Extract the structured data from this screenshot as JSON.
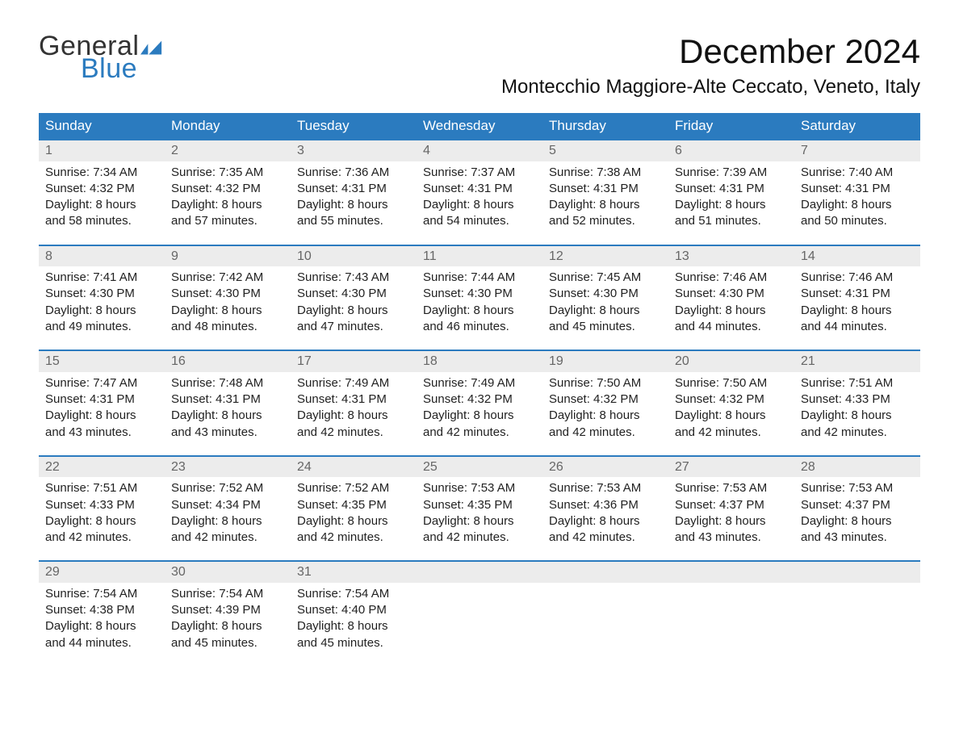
{
  "logo": {
    "text1": "General",
    "text2": "Blue",
    "accent_color": "#2b7bbf"
  },
  "title": "December 2024",
  "location": "Montecchio Maggiore-Alte Ceccato, Veneto, Italy",
  "colors": {
    "header_bg": "#2b7bbf",
    "header_text": "#ffffff",
    "row_separator": "#2b7bbf",
    "daynum_bg": "#ececec",
    "daynum_text": "#666666",
    "body_text": "#222222",
    "page_bg": "#ffffff"
  },
  "day_headers": [
    "Sunday",
    "Monday",
    "Tuesday",
    "Wednesday",
    "Thursday",
    "Friday",
    "Saturday"
  ],
  "weeks": [
    [
      {
        "n": "1",
        "sunrise": "Sunrise: 7:34 AM",
        "sunset": "Sunset: 4:32 PM",
        "d1": "Daylight: 8 hours",
        "d2": "and 58 minutes."
      },
      {
        "n": "2",
        "sunrise": "Sunrise: 7:35 AM",
        "sunset": "Sunset: 4:32 PM",
        "d1": "Daylight: 8 hours",
        "d2": "and 57 minutes."
      },
      {
        "n": "3",
        "sunrise": "Sunrise: 7:36 AM",
        "sunset": "Sunset: 4:31 PM",
        "d1": "Daylight: 8 hours",
        "d2": "and 55 minutes."
      },
      {
        "n": "4",
        "sunrise": "Sunrise: 7:37 AM",
        "sunset": "Sunset: 4:31 PM",
        "d1": "Daylight: 8 hours",
        "d2": "and 54 minutes."
      },
      {
        "n": "5",
        "sunrise": "Sunrise: 7:38 AM",
        "sunset": "Sunset: 4:31 PM",
        "d1": "Daylight: 8 hours",
        "d2": "and 52 minutes."
      },
      {
        "n": "6",
        "sunrise": "Sunrise: 7:39 AM",
        "sunset": "Sunset: 4:31 PM",
        "d1": "Daylight: 8 hours",
        "d2": "and 51 minutes."
      },
      {
        "n": "7",
        "sunrise": "Sunrise: 7:40 AM",
        "sunset": "Sunset: 4:31 PM",
        "d1": "Daylight: 8 hours",
        "d2": "and 50 minutes."
      }
    ],
    [
      {
        "n": "8",
        "sunrise": "Sunrise: 7:41 AM",
        "sunset": "Sunset: 4:30 PM",
        "d1": "Daylight: 8 hours",
        "d2": "and 49 minutes."
      },
      {
        "n": "9",
        "sunrise": "Sunrise: 7:42 AM",
        "sunset": "Sunset: 4:30 PM",
        "d1": "Daylight: 8 hours",
        "d2": "and 48 minutes."
      },
      {
        "n": "10",
        "sunrise": "Sunrise: 7:43 AM",
        "sunset": "Sunset: 4:30 PM",
        "d1": "Daylight: 8 hours",
        "d2": "and 47 minutes."
      },
      {
        "n": "11",
        "sunrise": "Sunrise: 7:44 AM",
        "sunset": "Sunset: 4:30 PM",
        "d1": "Daylight: 8 hours",
        "d2": "and 46 minutes."
      },
      {
        "n": "12",
        "sunrise": "Sunrise: 7:45 AM",
        "sunset": "Sunset: 4:30 PM",
        "d1": "Daylight: 8 hours",
        "d2": "and 45 minutes."
      },
      {
        "n": "13",
        "sunrise": "Sunrise: 7:46 AM",
        "sunset": "Sunset: 4:30 PM",
        "d1": "Daylight: 8 hours",
        "d2": "and 44 minutes."
      },
      {
        "n": "14",
        "sunrise": "Sunrise: 7:46 AM",
        "sunset": "Sunset: 4:31 PM",
        "d1": "Daylight: 8 hours",
        "d2": "and 44 minutes."
      }
    ],
    [
      {
        "n": "15",
        "sunrise": "Sunrise: 7:47 AM",
        "sunset": "Sunset: 4:31 PM",
        "d1": "Daylight: 8 hours",
        "d2": "and 43 minutes."
      },
      {
        "n": "16",
        "sunrise": "Sunrise: 7:48 AM",
        "sunset": "Sunset: 4:31 PM",
        "d1": "Daylight: 8 hours",
        "d2": "and 43 minutes."
      },
      {
        "n": "17",
        "sunrise": "Sunrise: 7:49 AM",
        "sunset": "Sunset: 4:31 PM",
        "d1": "Daylight: 8 hours",
        "d2": "and 42 minutes."
      },
      {
        "n": "18",
        "sunrise": "Sunrise: 7:49 AM",
        "sunset": "Sunset: 4:32 PM",
        "d1": "Daylight: 8 hours",
        "d2": "and 42 minutes."
      },
      {
        "n": "19",
        "sunrise": "Sunrise: 7:50 AM",
        "sunset": "Sunset: 4:32 PM",
        "d1": "Daylight: 8 hours",
        "d2": "and 42 minutes."
      },
      {
        "n": "20",
        "sunrise": "Sunrise: 7:50 AM",
        "sunset": "Sunset: 4:32 PM",
        "d1": "Daylight: 8 hours",
        "d2": "and 42 minutes."
      },
      {
        "n": "21",
        "sunrise": "Sunrise: 7:51 AM",
        "sunset": "Sunset: 4:33 PM",
        "d1": "Daylight: 8 hours",
        "d2": "and 42 minutes."
      }
    ],
    [
      {
        "n": "22",
        "sunrise": "Sunrise: 7:51 AM",
        "sunset": "Sunset: 4:33 PM",
        "d1": "Daylight: 8 hours",
        "d2": "and 42 minutes."
      },
      {
        "n": "23",
        "sunrise": "Sunrise: 7:52 AM",
        "sunset": "Sunset: 4:34 PM",
        "d1": "Daylight: 8 hours",
        "d2": "and 42 minutes."
      },
      {
        "n": "24",
        "sunrise": "Sunrise: 7:52 AM",
        "sunset": "Sunset: 4:35 PM",
        "d1": "Daylight: 8 hours",
        "d2": "and 42 minutes."
      },
      {
        "n": "25",
        "sunrise": "Sunrise: 7:53 AM",
        "sunset": "Sunset: 4:35 PM",
        "d1": "Daylight: 8 hours",
        "d2": "and 42 minutes."
      },
      {
        "n": "26",
        "sunrise": "Sunrise: 7:53 AM",
        "sunset": "Sunset: 4:36 PM",
        "d1": "Daylight: 8 hours",
        "d2": "and 42 minutes."
      },
      {
        "n": "27",
        "sunrise": "Sunrise: 7:53 AM",
        "sunset": "Sunset: 4:37 PM",
        "d1": "Daylight: 8 hours",
        "d2": "and 43 minutes."
      },
      {
        "n": "28",
        "sunrise": "Sunrise: 7:53 AM",
        "sunset": "Sunset: 4:37 PM",
        "d1": "Daylight: 8 hours",
        "d2": "and 43 minutes."
      }
    ],
    [
      {
        "n": "29",
        "sunrise": "Sunrise: 7:54 AM",
        "sunset": "Sunset: 4:38 PM",
        "d1": "Daylight: 8 hours",
        "d2": "and 44 minutes."
      },
      {
        "n": "30",
        "sunrise": "Sunrise: 7:54 AM",
        "sunset": "Sunset: 4:39 PM",
        "d1": "Daylight: 8 hours",
        "d2": "and 45 minutes."
      },
      {
        "n": "31",
        "sunrise": "Sunrise: 7:54 AM",
        "sunset": "Sunset: 4:40 PM",
        "d1": "Daylight: 8 hours",
        "d2": "and 45 minutes."
      },
      null,
      null,
      null,
      null
    ]
  ]
}
